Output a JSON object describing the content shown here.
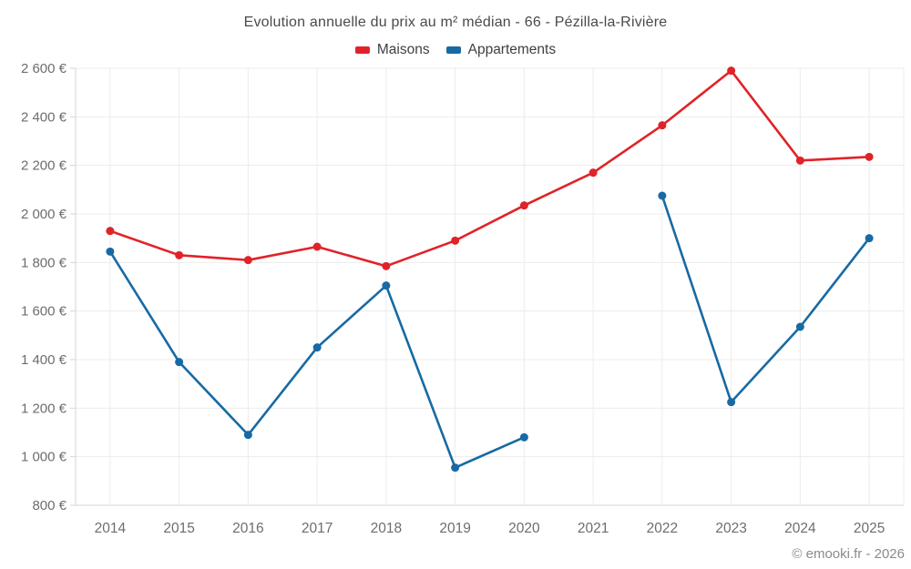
{
  "page": {
    "footer": "© emooki.fr - 2026"
  },
  "palette": {
    "background": "#ffffff",
    "title_text": "#4a4a4a",
    "legend_text": "#3f3f3f",
    "tick_text": "#6d6d6d",
    "gridline": "#ececec",
    "axis_line": "#d6d6d6",
    "footer_text": "#8b8b8b"
  },
  "chart_data": {
    "type": "line",
    "title": "Evolution annuelle du prix au m² médian - 66 - Pézilla-la-Rivière",
    "xlabel": "",
    "ylabel": "",
    "grid": true,
    "legend_position": "top",
    "categories": [
      "2014",
      "2015",
      "2016",
      "2017",
      "2018",
      "2019",
      "2020",
      "2021",
      "2022",
      "2023",
      "2024",
      "2025"
    ],
    "series": [
      {
        "name": "Maisons",
        "color": "#e02328",
        "values": [
          1930,
          1830,
          1810,
          1865,
          1785,
          1890,
          2035,
          2170,
          2365,
          2590,
          2220,
          2235
        ]
      },
      {
        "name": "Appartements",
        "color": "#176aa3",
        "values": [
          1845,
          1390,
          1090,
          1450,
          1705,
          955,
          1080,
          null,
          2075,
          1225,
          1535,
          1900
        ]
      }
    ],
    "ylim": [
      800,
      2600
    ],
    "ytick_step": 200,
    "ytick_labels": [
      "800 €",
      "1 000 €",
      "1 200 €",
      "1 400 €",
      "1 600 €",
      "1 800 €",
      "2 000 €",
      "2 200 €",
      "2 400 €",
      "2 600 €"
    ],
    "currency_suffix": "€"
  }
}
